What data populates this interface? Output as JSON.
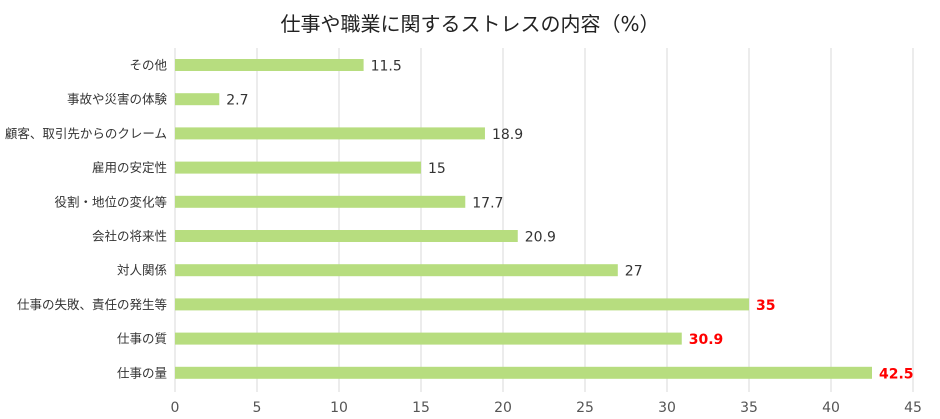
{
  "chart_data": {
    "type": "bar",
    "orientation": "horizontal",
    "title": "仕事や職業に関するストレスの内容（%）",
    "categories": [
      "その他",
      "事故や災害の体験",
      "顧客、取引先からのクレーム",
      "雇用の安定性",
      "役割・地位の変化等",
      "会社の将来性",
      "対人関係",
      "仕事の失敗、責任の発生等",
      "仕事の質",
      "仕事の量"
    ],
    "values": [
      11.5,
      2.7,
      18.9,
      15,
      17.7,
      20.9,
      27,
      35,
      30.9,
      42.5
    ],
    "value_labels": [
      "11.5",
      "2.7",
      "18.9",
      "15",
      "17.7",
      "20.9",
      "27",
      "35",
      "30.9",
      "42.5"
    ],
    "highlighted": [
      false,
      false,
      false,
      false,
      false,
      false,
      false,
      true,
      true,
      true
    ],
    "xlim": [
      0,
      45
    ],
    "xticks": [
      "0",
      "5",
      "10",
      "15",
      "20",
      "25",
      "30",
      "35",
      "40",
      "45"
    ],
    "xtick_values": [
      0,
      5,
      10,
      15,
      20,
      25,
      30,
      35,
      40,
      45
    ],
    "xlabel": "",
    "ylabel": "",
    "grid": true,
    "colors": {
      "bar": "#b7dd7f",
      "grid": "#d9d9d9",
      "label": "#333333",
      "highlight_label": "#ff0000"
    }
  }
}
